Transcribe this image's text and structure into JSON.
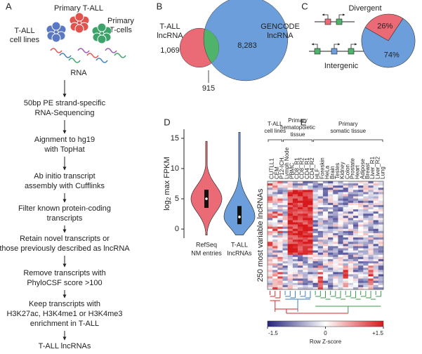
{
  "panel_a": {
    "label": "A",
    "sources": {
      "primary_tall": "Primary T-ALL",
      "cell_lines": [
        "T-ALL",
        "cell lines"
      ],
      "tcells": [
        "Primary",
        "T-cells"
      ]
    },
    "rna": "RNA",
    "steps": [
      [
        "50bp PE strand-specific",
        "RNA-Sequencing"
      ],
      [
        "Aignment to hg19",
        "with TopHat"
      ],
      [
        "Ab initio transcript",
        "assembly with Cufflinks"
      ],
      [
        "Filter known protein-coding",
        "transcripts"
      ],
      [
        "Retain novel transcripts or",
        "those previously described as lncRNA"
      ],
      [
        "Remove transcripts with",
        "PhyloCSF score >100"
      ],
      [
        "Keep transcripts with",
        "H3K27ac, H3K4me1 or H3K4me3",
        "enrichment in T-ALL"
      ],
      [
        "T-ALL lncRNAs"
      ]
    ]
  },
  "panel_b": {
    "label": "B",
    "left": {
      "name": [
        "T-ALL",
        "lncRNA"
      ],
      "value": 1069,
      "value_label": "1,069",
      "color": "#ea6a76"
    },
    "right": {
      "name": [
        "GENCODE",
        "lncRNA"
      ],
      "value": 8283,
      "value_label": "8,283",
      "color": "#6c9edb"
    },
    "overlap": {
      "value": 915,
      "color": "#4fb36b"
    }
  },
  "panel_c": {
    "label": "C",
    "divergent": "Divergent",
    "intergenic": "Intergenic",
    "chart": {
      "type": "pie",
      "values": [
        26,
        74
      ],
      "value_labels": [
        "26%",
        "74%"
      ],
      "colors": [
        "#ea6a76",
        "#6c9edb"
      ]
    }
  },
  "panel_d": {
    "label": "D",
    "chart": {
      "type": "violin",
      "y_label": {
        "base": "log",
        "subscript": "2",
        "rest": "max FPKM"
      },
      "categories": [
        [
          "RefSeq",
          "NM entries"
        ],
        [
          "T-ALL",
          "lncRNAs"
        ]
      ],
      "series": [
        {
          "color": "#ea6a76",
          "min": -1,
          "q1": 3.5,
          "median": 5,
          "q3": 6.5,
          "max": 14.5
        },
        {
          "color": "#6c9edb",
          "min": -1,
          "q1": 0.8,
          "median": 2,
          "q3": 3.8,
          "max": 16
        }
      ],
      "ylim": [
        -1.5,
        16.5
      ],
      "yticks": [
        0,
        5,
        10,
        15
      ]
    }
  },
  "panel_e": {
    "label": "E",
    "y_label": "250 most variable lncRNAs",
    "groups": [
      {
        "label": [
          "T-ALL",
          "cell lines"
        ],
        "color": "#d7262b",
        "columns": [
          "CUTLL1",
          "CEM",
          "P12-ICH."
        ]
      },
      {
        "label": [
          "Primary",
          "hematopoietic",
          "tissue"
        ],
        "color": "#3f7fc0",
        "columns": [
          "Lymph Node",
          "PBMC",
          "CD8_R1",
          "CD8_R2",
          "CD4_R1",
          "CD4_R2"
        ]
      },
      {
        "label": [
          "Primary",
          "somatic tissue"
        ],
        "color": "#3a9a4a",
        "columns": [
          "HLF",
          "Foreskin",
          "HeLa",
          "Brain",
          "Testes",
          "Kidney",
          "Colon",
          "Prostate",
          "Heart",
          "Adipose",
          "Breast",
          "Liver_R1",
          "Liver_R2",
          "Lung"
        ]
      }
    ],
    "colorbar": {
      "lim": [
        -1.5,
        1.5
      ],
      "ticks": [
        -1.5,
        0,
        {
          "value": 1.5,
          "label": "+1.5"
        }
      ],
      "label": "Row Z-score",
      "colors": [
        "#23237e",
        "#ffffff",
        "#d7191c"
      ]
    }
  }
}
